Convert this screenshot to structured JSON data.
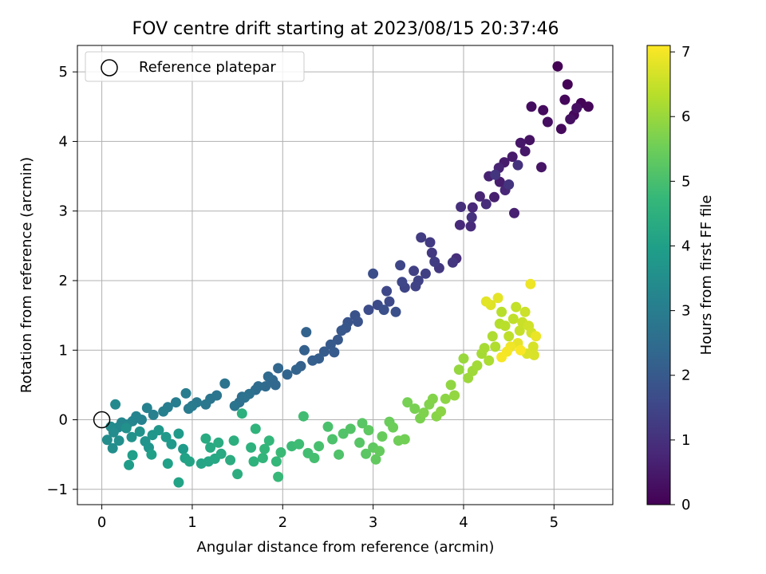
{
  "chart_data": {
    "type": "scatter",
    "title": "FOV centre drift starting at 2023/08/15 20:37:46",
    "xlabel": "Angular distance from reference (arcmin)",
    "ylabel": "Rotation from reference (arcmin)",
    "xlim": [
      -0.27,
      5.65
    ],
    "ylim": [
      -1.22,
      5.38
    ],
    "xticks": [
      "0",
      "1",
      "2",
      "3",
      "4",
      "5"
    ],
    "yticks": [
      "−1",
      "0",
      "1",
      "2",
      "3",
      "4",
      "5"
    ],
    "grid": true,
    "legend": {
      "placement": "top-left",
      "entries": [
        "Reference platepar"
      ]
    },
    "reference_point": {
      "x": 0,
      "y": 0
    },
    "colorbar": {
      "label": "Hours from first FF file",
      "colormap": "viridis",
      "range": [
        0,
        7.1
      ],
      "ticks": [
        "0",
        "1",
        "2",
        "3",
        "4",
        "5",
        "6",
        "7"
      ]
    },
    "series": [
      {
        "color_by": "hours",
        "points": [
          [
            5.04,
            5.08,
            0.02
          ],
          [
            5.15,
            4.82,
            0.05
          ],
          [
            5.3,
            4.55,
            0.08
          ],
          [
            5.38,
            4.5,
            0.1
          ],
          [
            5.12,
            4.6,
            0.13
          ],
          [
            5.22,
            4.38,
            0.15
          ],
          [
            5.08,
            4.18,
            0.18
          ],
          [
            4.88,
            4.45,
            0.21
          ],
          [
            4.75,
            4.5,
            0.24
          ],
          [
            4.93,
            4.28,
            0.27
          ],
          [
            5.18,
            4.32,
            0.3
          ],
          [
            5.25,
            4.48,
            0.33
          ],
          [
            4.73,
            4.02,
            0.36
          ],
          [
            4.86,
            3.63,
            0.4
          ],
          [
            4.63,
            3.98,
            0.43
          ],
          [
            4.68,
            3.86,
            0.46
          ],
          [
            4.54,
            3.78,
            0.5
          ],
          [
            4.45,
            3.7,
            0.53
          ],
          [
            4.4,
            3.42,
            0.56
          ],
          [
            4.34,
            3.2,
            0.6
          ],
          [
            4.56,
            2.97,
            0.63
          ],
          [
            4.28,
            3.5,
            0.66
          ],
          [
            4.39,
            3.62,
            0.7
          ],
          [
            4.18,
            3.21,
            0.73
          ],
          [
            4.46,
            3.3,
            0.76
          ],
          [
            4.1,
            3.05,
            0.8
          ],
          [
            3.96,
            2.8,
            0.83
          ],
          [
            4.08,
            2.78,
            0.86
          ],
          [
            4.25,
            3.1,
            0.9
          ],
          [
            3.92,
            2.32,
            0.93
          ],
          [
            3.97,
            3.06,
            0.97
          ],
          [
            4.09,
            2.91,
            1.0
          ],
          [
            4.6,
            3.66,
            1.03
          ],
          [
            4.5,
            3.38,
            1.07
          ],
          [
            4.35,
            3.52,
            1.1
          ],
          [
            3.88,
            2.26,
            1.13
          ],
          [
            3.73,
            2.18,
            1.16
          ],
          [
            3.65,
            2.4,
            1.2
          ],
          [
            3.63,
            2.55,
            1.23
          ],
          [
            3.53,
            2.62,
            1.26
          ],
          [
            3.68,
            2.27,
            1.3
          ],
          [
            3.58,
            2.1,
            1.33
          ],
          [
            3.45,
            2.14,
            1.36
          ],
          [
            3.5,
            2.0,
            1.4
          ],
          [
            3.47,
            1.92,
            1.43
          ],
          [
            3.35,
            1.9,
            1.46
          ],
          [
            3.3,
            2.22,
            1.5
          ],
          [
            3.32,
            1.98,
            1.53
          ],
          [
            3.15,
            1.85,
            1.56
          ],
          [
            3.18,
            1.7,
            1.6
          ],
          [
            3.05,
            1.65,
            1.63
          ],
          [
            2.95,
            1.58,
            1.66
          ],
          [
            3.0,
            2.1,
            1.7
          ],
          [
            3.25,
            1.55,
            1.73
          ],
          [
            3.12,
            1.58,
            1.76
          ],
          [
            2.8,
            1.5,
            1.8
          ],
          [
            2.83,
            1.41,
            1.83
          ],
          [
            2.72,
            1.4,
            1.86
          ],
          [
            2.7,
            1.32,
            1.9
          ],
          [
            2.65,
            1.28,
            1.93
          ],
          [
            2.61,
            1.15,
            1.96
          ],
          [
            2.53,
            1.08,
            2.0
          ],
          [
            2.57,
            0.97,
            2.03
          ],
          [
            2.46,
            0.98,
            2.06
          ],
          [
            2.4,
            0.88,
            2.1
          ],
          [
            2.33,
            0.85,
            2.13
          ],
          [
            2.24,
            1.0,
            2.16
          ],
          [
            2.2,
            0.77,
            2.2
          ],
          [
            2.26,
            1.26,
            2.23
          ],
          [
            2.15,
            0.72,
            2.26
          ],
          [
            2.05,
            0.65,
            2.3
          ],
          [
            1.95,
            0.74,
            2.33
          ],
          [
            1.89,
            0.57,
            2.36
          ],
          [
            1.92,
            0.5,
            2.4
          ],
          [
            1.84,
            0.62,
            2.43
          ],
          [
            1.81,
            0.48,
            2.46
          ],
          [
            1.73,
            0.48,
            2.5
          ],
          [
            1.7,
            0.43,
            2.53
          ],
          [
            1.55,
            0.33,
            2.56
          ],
          [
            1.52,
            0.25,
            2.6
          ],
          [
            1.63,
            0.37,
            2.63
          ],
          [
            1.58,
            0.32,
            2.66
          ],
          [
            1.47,
            0.2,
            2.7
          ],
          [
            1.36,
            0.52,
            2.73
          ],
          [
            1.27,
            0.35,
            2.76
          ],
          [
            1.2,
            0.3,
            2.8
          ],
          [
            1.15,
            0.22,
            2.83
          ],
          [
            1.05,
            0.25,
            2.86
          ],
          [
            1.0,
            0.2,
            2.9
          ],
          [
            0.96,
            0.16,
            2.93
          ],
          [
            0.93,
            0.38,
            2.96
          ],
          [
            0.82,
            0.25,
            3.0
          ],
          [
            0.73,
            0.18,
            3.03
          ],
          [
            0.68,
            0.12,
            3.06
          ],
          [
            0.57,
            0.07,
            3.1
          ],
          [
            0.5,
            0.17,
            3.13
          ],
          [
            0.44,
            0.0,
            3.16
          ],
          [
            0.38,
            0.05,
            3.2
          ],
          [
            0.34,
            -0.02,
            3.23
          ],
          [
            0.28,
            -0.07,
            3.26
          ],
          [
            0.22,
            -0.04,
            3.3
          ],
          [
            0.18,
            -0.11,
            3.33
          ],
          [
            0.15,
            0.22,
            3.36
          ],
          [
            0.1,
            -0.1,
            3.4
          ],
          [
            0.13,
            -0.18,
            3.43
          ],
          [
            0.06,
            -0.29,
            3.46
          ],
          [
            0.12,
            -0.41,
            3.5
          ],
          [
            0.19,
            -0.3,
            3.53
          ],
          [
            0.27,
            -0.12,
            3.56
          ],
          [
            0.33,
            -0.25,
            3.6
          ],
          [
            0.42,
            -0.17,
            3.63
          ],
          [
            0.48,
            -0.31,
            3.66
          ],
          [
            0.52,
            -0.4,
            3.7
          ],
          [
            0.56,
            -0.22,
            3.73
          ],
          [
            0.63,
            -0.15,
            3.76
          ],
          [
            0.71,
            -0.25,
            3.8
          ],
          [
            0.77,
            -0.35,
            3.83
          ],
          [
            0.85,
            -0.2,
            3.86
          ],
          [
            0.9,
            -0.42,
            3.9
          ],
          [
            0.3,
            -0.65,
            3.93
          ],
          [
            0.34,
            -0.51,
            3.96
          ],
          [
            0.55,
            -0.5,
            4.0
          ],
          [
            0.73,
            -0.63,
            4.03
          ],
          [
            0.92,
            -0.55,
            4.06
          ],
          [
            0.85,
            -0.9,
            4.1
          ],
          [
            0.97,
            -0.6,
            4.13
          ],
          [
            1.1,
            -0.63,
            4.16
          ],
          [
            1.18,
            -0.6,
            4.2
          ],
          [
            1.25,
            -0.56,
            4.23
          ],
          [
            1.32,
            -0.49,
            4.26
          ],
          [
            1.2,
            -0.4,
            4.3
          ],
          [
            1.15,
            -0.27,
            4.33
          ],
          [
            1.29,
            -0.33,
            4.36
          ],
          [
            1.42,
            -0.58,
            4.4
          ],
          [
            1.5,
            -0.78,
            4.43
          ],
          [
            1.46,
            -0.3,
            4.46
          ],
          [
            1.55,
            0.09,
            4.5
          ],
          [
            1.65,
            -0.4,
            4.53
          ],
          [
            1.68,
            -0.6,
            4.56
          ],
          [
            1.7,
            -0.13,
            4.6
          ],
          [
            1.78,
            -0.55,
            4.63
          ],
          [
            1.8,
            -0.42,
            4.66
          ],
          [
            1.85,
            -0.3,
            4.7
          ],
          [
            1.93,
            -0.6,
            4.73
          ],
          [
            1.95,
            -0.82,
            4.76
          ],
          [
            1.98,
            -0.47,
            4.8
          ],
          [
            2.1,
            -0.38,
            4.83
          ],
          [
            2.18,
            -0.35,
            4.86
          ],
          [
            2.23,
            0.05,
            4.9
          ],
          [
            2.28,
            -0.48,
            4.93
          ],
          [
            2.35,
            -0.55,
            4.96
          ],
          [
            2.4,
            -0.38,
            5.0
          ],
          [
            2.5,
            -0.1,
            5.03
          ],
          [
            2.55,
            -0.28,
            5.06
          ],
          [
            2.62,
            -0.5,
            5.1
          ],
          [
            2.67,
            -0.2,
            5.13
          ],
          [
            2.75,
            -0.13,
            5.16
          ],
          [
            2.85,
            -0.33,
            5.2
          ],
          [
            2.88,
            -0.05,
            5.23
          ],
          [
            2.92,
            -0.49,
            5.26
          ],
          [
            2.95,
            -0.15,
            5.3
          ],
          [
            3.0,
            -0.4,
            5.33
          ],
          [
            3.03,
            -0.57,
            5.36
          ],
          [
            3.07,
            -0.45,
            5.4
          ],
          [
            3.1,
            -0.24,
            5.43
          ],
          [
            3.18,
            -0.03,
            5.46
          ],
          [
            3.22,
            -0.11,
            5.5
          ],
          [
            3.28,
            -0.3,
            5.53
          ],
          [
            3.35,
            -0.28,
            5.56
          ],
          [
            3.38,
            0.25,
            5.6
          ],
          [
            3.46,
            0.16,
            5.63
          ],
          [
            3.52,
            0.02,
            5.66
          ],
          [
            3.56,
            0.1,
            5.7
          ],
          [
            3.62,
            0.22,
            5.73
          ],
          [
            3.66,
            0.3,
            5.76
          ],
          [
            3.7,
            0.05,
            5.8
          ],
          [
            3.75,
            0.12,
            5.83
          ],
          [
            3.8,
            0.3,
            5.86
          ],
          [
            3.86,
            0.5,
            5.9
          ],
          [
            3.9,
            0.35,
            5.93
          ],
          [
            3.95,
            0.72,
            5.96
          ],
          [
            4.0,
            0.88,
            6.0
          ],
          [
            4.05,
            0.6,
            6.03
          ],
          [
            4.1,
            0.7,
            6.06
          ],
          [
            4.15,
            0.78,
            6.1
          ],
          [
            4.2,
            0.95,
            6.13
          ],
          [
            4.23,
            1.03,
            6.16
          ],
          [
            4.28,
            0.85,
            6.2
          ],
          [
            4.32,
            1.2,
            6.23
          ],
          [
            4.35,
            1.05,
            6.26
          ],
          [
            4.4,
            1.38,
            6.3
          ],
          [
            4.42,
            1.55,
            6.33
          ],
          [
            4.46,
            1.35,
            6.36
          ],
          [
            4.5,
            1.2,
            6.4
          ],
          [
            4.55,
            1.45,
            6.43
          ],
          [
            4.58,
            1.62,
            6.46
          ],
          [
            4.62,
            1.28,
            6.5
          ],
          [
            4.65,
            1.4,
            6.53
          ],
          [
            4.68,
            1.55,
            6.56
          ],
          [
            4.72,
            1.35,
            6.6
          ],
          [
            4.75,
            1.25,
            6.63
          ],
          [
            4.77,
            1.05,
            6.66
          ],
          [
            4.78,
            0.93,
            6.7
          ],
          [
            4.7,
            0.95,
            6.73
          ],
          [
            4.3,
            1.65,
            6.76
          ],
          [
            4.25,
            1.7,
            6.8
          ],
          [
            4.38,
            1.75,
            6.83
          ],
          [
            4.6,
            1.1,
            6.86
          ],
          [
            4.8,
            1.2,
            6.9
          ],
          [
            4.74,
            1.95,
            6.93
          ],
          [
            4.52,
            1.05,
            6.96
          ],
          [
            4.48,
            0.98,
            7.0
          ],
          [
            4.42,
            0.9,
            7.03
          ],
          [
            4.63,
            1.0,
            7.06
          ]
        ]
      }
    ]
  }
}
